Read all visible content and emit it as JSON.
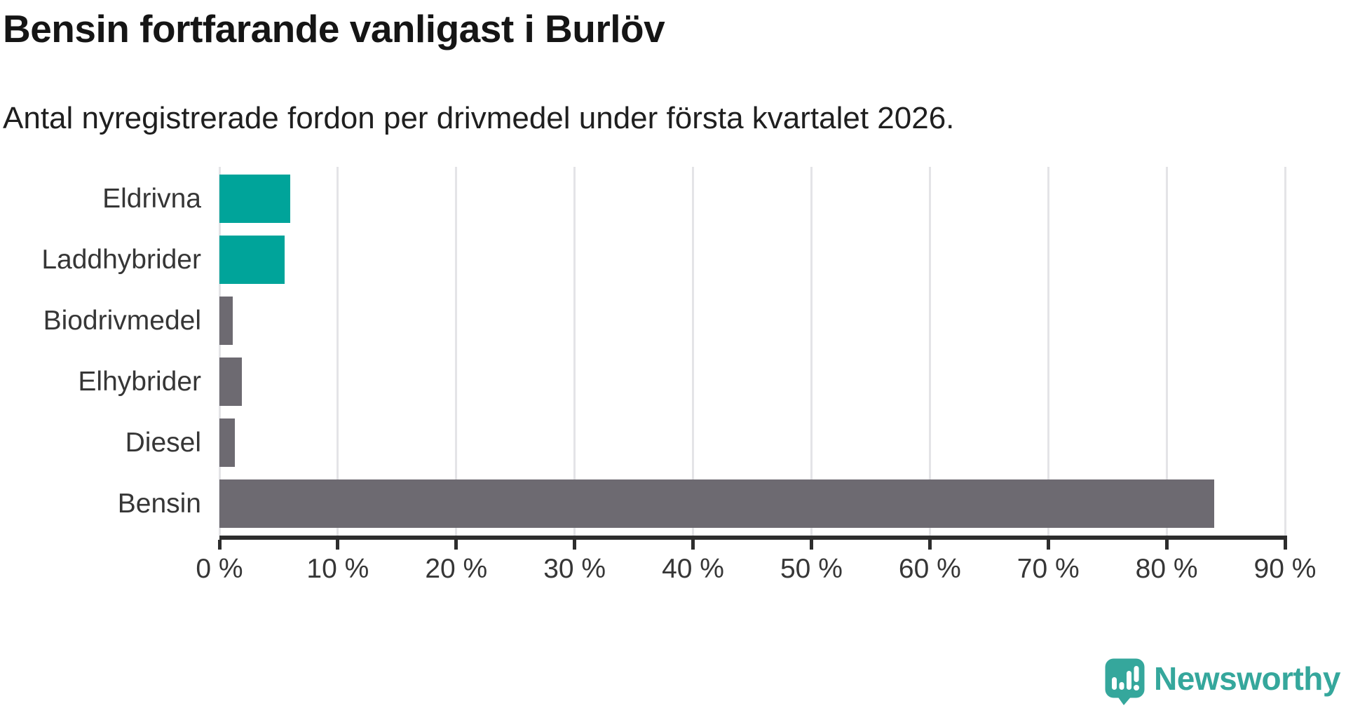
{
  "header": {
    "title": "Bensin fortfarande vanligast i Burlöv",
    "subtitle": "Antal nyregistrerade fordon per drivmedel under första kvartalet 2026."
  },
  "chart_data": {
    "type": "bar",
    "orientation": "horizontal",
    "title": "Bensin fortfarande vanligast i Burlöv",
    "subtitle": "Antal nyregistrerade fordon per drivmedel under första kvartalet 2026.",
    "categories": [
      "Eldrivna",
      "Laddhybrider",
      "Biodrivmedel",
      "Elhybrider",
      "Diesel",
      "Bensin"
    ],
    "values": [
      6.0,
      5.5,
      1.1,
      1.9,
      1.3,
      84.0
    ],
    "unit": "%",
    "bar_colors": [
      "#00a49a",
      "#00a49a",
      "#6d6a71",
      "#6d6a71",
      "#6d6a71",
      "#6d6a71"
    ],
    "xlabel": "",
    "ylabel": "",
    "xlim": [
      0,
      90
    ],
    "x_tick_values": [
      0,
      10,
      20,
      30,
      40,
      50,
      60,
      70,
      80,
      90
    ],
    "x_tick_labels": [
      "0 %",
      "10 %",
      "20 %",
      "30 %",
      "40 %",
      "50 %",
      "60 %",
      "70 %",
      "80 %",
      "90 %"
    ],
    "grid": "vertical-only",
    "legend": "none"
  },
  "colors": {
    "teal": "#00a49a",
    "gray": "#6d6a71",
    "axis": "#2d2d2d",
    "gridline": "#e4e4e7",
    "text": "#363636"
  },
  "footer": {
    "brand": "Newsworthy",
    "brand_color": "#35a79c"
  }
}
